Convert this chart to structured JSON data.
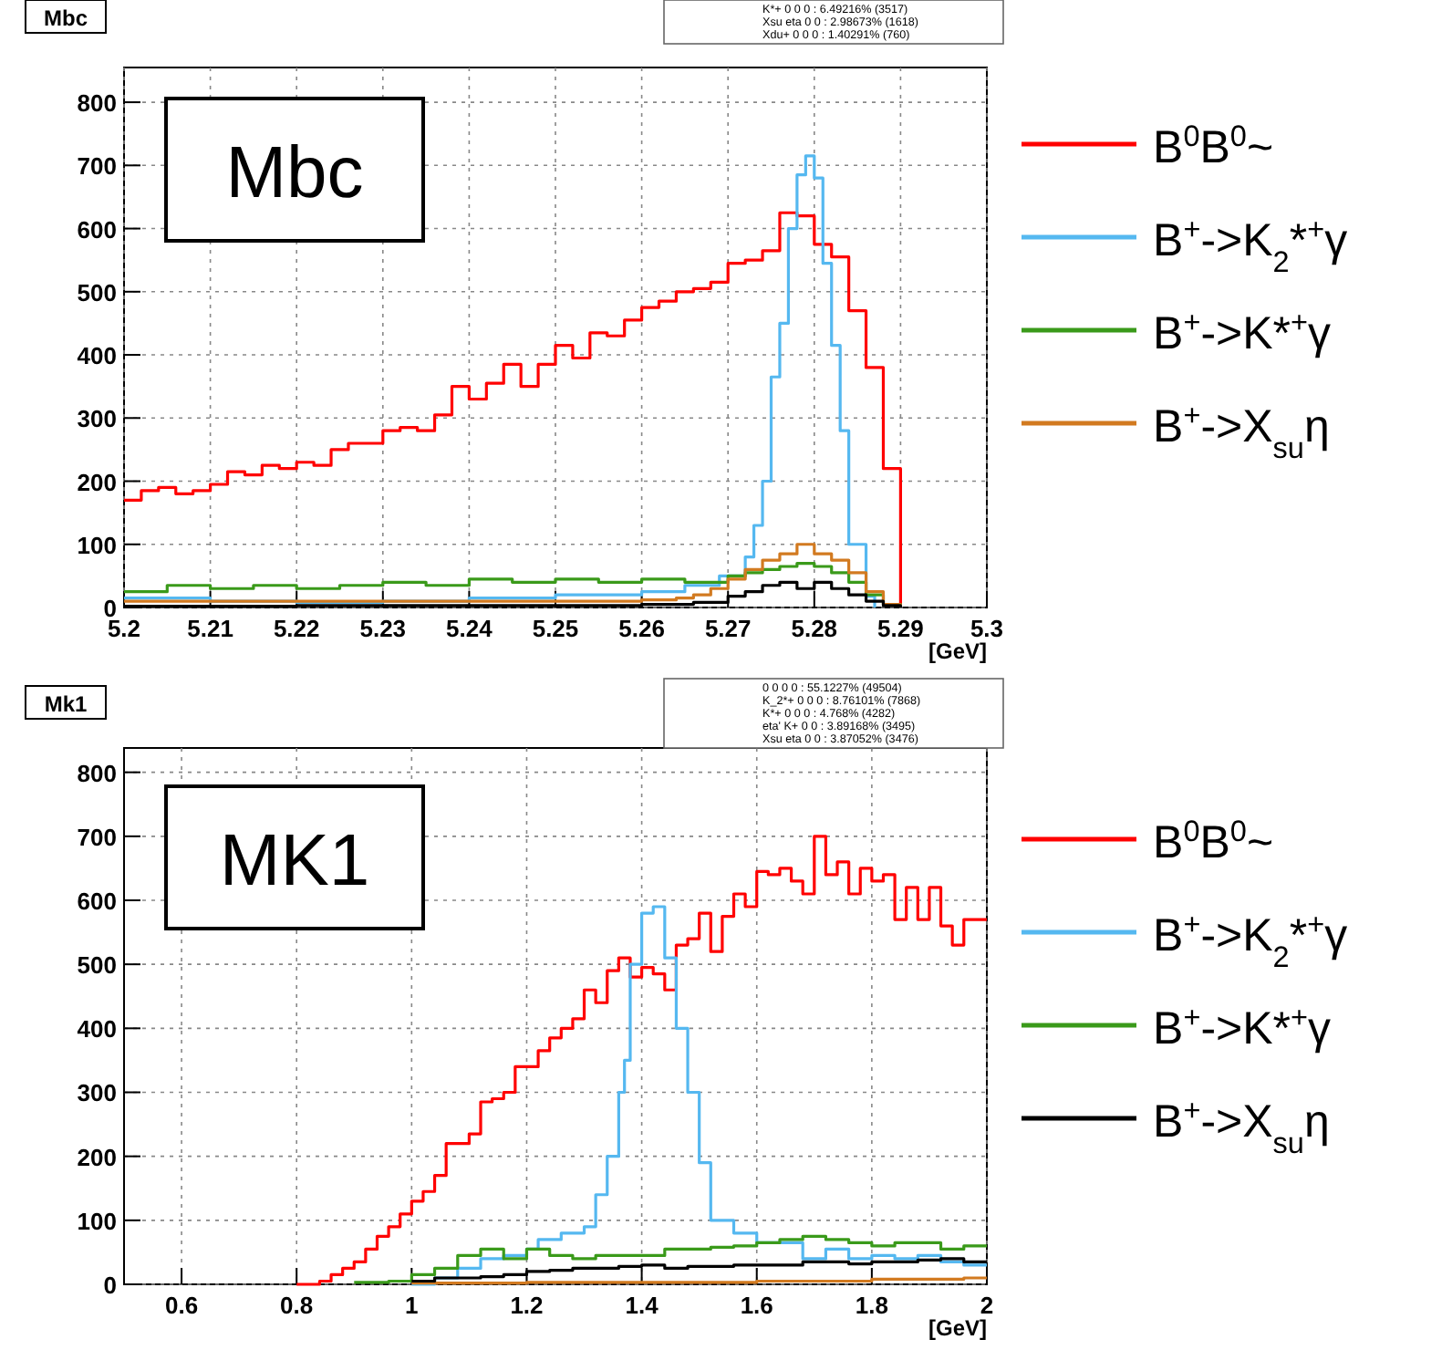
{
  "chart_data": [
    {
      "type": "step",
      "title": "Mbc",
      "xlabel": "[GeV]",
      "xlim": [
        5.2,
        5.3
      ],
      "xticks": [
        5.2,
        5.21,
        5.22,
        5.23,
        5.24,
        5.25,
        5.26,
        5.27,
        5.28,
        5.29,
        5.3
      ],
      "ylim": [
        0,
        855
      ],
      "yticks": [
        0,
        100,
        200,
        300,
        400,
        500,
        600,
        700,
        800
      ],
      "grid": true,
      "legend": "right",
      "annotations": [
        "Mbc",
        "K*+ 0 0 0 : 6.49216% (3517)",
        "Xsu eta 0 0 : 2.98673% (1618)",
        "Xdu+ 0 0 0 : 1.40291% (760)"
      ],
      "series": [
        {
          "name": "B$^{0}$B$^{0}$~",
          "color": "#ff0000",
          "x": [
            5.2,
            5.202,
            5.204,
            5.206,
            5.208,
            5.21,
            5.212,
            5.214,
            5.216,
            5.218,
            5.22,
            5.222,
            5.224,
            5.226,
            5.228,
            5.23,
            5.232,
            5.234,
            5.236,
            5.238,
            5.24,
            5.242,
            5.244,
            5.246,
            5.248,
            5.25,
            5.252,
            5.254,
            5.256,
            5.258,
            5.26,
            5.262,
            5.264,
            5.266,
            5.268,
            5.27,
            5.272,
            5.274,
            5.276,
            5.278,
            5.28,
            5.282,
            5.284,
            5.286,
            5.288,
            5.29
          ],
          "values": [
            170,
            185,
            190,
            180,
            185,
            195,
            215,
            210,
            225,
            220,
            230,
            225,
            250,
            260,
            260,
            280,
            285,
            280,
            305,
            350,
            330,
            355,
            385,
            350,
            385,
            415,
            395,
            435,
            430,
            455,
            475,
            485,
            500,
            505,
            515,
            545,
            550,
            565,
            625,
            620,
            575,
            555,
            470,
            380,
            220,
            0
          ]
        },
        {
          "name": "B$^{+}$->K$_{2}$*$^{+}$γ",
          "color": "#55b8f0",
          "x": [
            5.2,
            5.21,
            5.22,
            5.23,
            5.24,
            5.25,
            5.26,
            5.265,
            5.269,
            5.272,
            5.273,
            5.274,
            5.275,
            5.276,
            5.277,
            5.278,
            5.279,
            5.28,
            5.281,
            5.282,
            5.283,
            5.284,
            5.285,
            5.286,
            5.287
          ],
          "values": [
            15,
            10,
            8,
            10,
            15,
            20,
            25,
            35,
            50,
            80,
            130,
            200,
            365,
            450,
            600,
            685,
            715,
            680,
            545,
            415,
            280,
            100,
            100,
            18,
            0
          ]
        },
        {
          "name": "B$^{+}$->K*$^{+}$γ",
          "color": "#3a9a1a",
          "x": [
            5.2,
            5.205,
            5.21,
            5.215,
            5.22,
            5.225,
            5.23,
            5.235,
            5.24,
            5.245,
            5.25,
            5.255,
            5.26,
            5.265,
            5.27,
            5.272,
            5.274,
            5.276,
            5.278,
            5.28,
            5.282,
            5.284,
            5.286,
            5.288,
            5.29
          ],
          "values": [
            25,
            35,
            30,
            35,
            30,
            35,
            40,
            35,
            45,
            40,
            45,
            40,
            45,
            40,
            50,
            55,
            60,
            65,
            70,
            65,
            55,
            40,
            20,
            5,
            0
          ]
        },
        {
          "name": "B$^{+}$->X$_{su}$η",
          "color": "#d27a20",
          "x": [
            5.2,
            5.22,
            5.24,
            5.26,
            5.264,
            5.266,
            5.268,
            5.27,
            5.272,
            5.274,
            5.276,
            5.278,
            5.28,
            5.282,
            5.284,
            5.286,
            5.288,
            5.29
          ],
          "values": [
            10,
            10,
            10,
            12,
            15,
            20,
            30,
            45,
            60,
            75,
            85,
            100,
            85,
            75,
            55,
            25,
            5,
            0
          ]
        },
        {
          "color": "#000000",
          "x": [
            5.2,
            5.22,
            5.24,
            5.26,
            5.266,
            5.27,
            5.272,
            5.274,
            5.276,
            5.278,
            5.28,
            5.282,
            5.284,
            5.286,
            5.288,
            5.29
          ],
          "values": [
            2,
            3,
            3,
            5,
            8,
            18,
            25,
            35,
            40,
            30,
            40,
            30,
            20,
            10,
            3,
            0
          ]
        }
      ]
    },
    {
      "type": "step",
      "title": "Mk1",
      "xlabel": "[GeV]",
      "xlim": [
        0.5,
        2
      ],
      "xticks": [
        0.6,
        0.8,
        1,
        1.2,
        1.4,
        1.6,
        1.8,
        2
      ],
      "ylim": [
        0,
        838
      ],
      "yticks": [
        0,
        100,
        200,
        300,
        400,
        500,
        600,
        700,
        800
      ],
      "grid": true,
      "legend": "right",
      "annotations": [
        "MK1",
        "0 0 0 0 : 55.1227% (49504)",
        "K_2*+ 0 0 0 : 8.76101% (7868)",
        "K*+ 0 0 0 : 4.768% (4282)",
        "eta' K+ 0 0 : 3.89168% (3495)",
        "Xsu eta 0 0 : 3.87052% (3476)"
      ],
      "series": [
        {
          "name": "B$^{0}$B$^{0}$~",
          "color": "#ff0000",
          "x": [
            0.8,
            0.84,
            0.86,
            0.88,
            0.9,
            0.92,
            0.94,
            0.96,
            0.98,
            1,
            1.02,
            1.04,
            1.06,
            1.08,
            1.1,
            1.12,
            1.14,
            1.16,
            1.18,
            1.2,
            1.22,
            1.24,
            1.26,
            1.28,
            1.3,
            1.32,
            1.34,
            1.36,
            1.38,
            1.4,
            1.42,
            1.44,
            1.46,
            1.48,
            1.5,
            1.52,
            1.54,
            1.56,
            1.58,
            1.6,
            1.62,
            1.64,
            1.66,
            1.68,
            1.7,
            1.72,
            1.74,
            1.76,
            1.78,
            1.8,
            1.82,
            1.84,
            1.86,
            1.88,
            1.9,
            1.92,
            1.94,
            1.96,
            1.98,
            2
          ],
          "values": [
            0,
            5,
            15,
            25,
            35,
            55,
            75,
            90,
            110,
            130,
            145,
            170,
            220,
            220,
            235,
            285,
            290,
            300,
            340,
            340,
            365,
            385,
            400,
            415,
            460,
            440,
            490,
            510,
            480,
            495,
            485,
            460,
            530,
            540,
            580,
            520,
            575,
            610,
            590,
            645,
            640,
            650,
            630,
            610,
            700,
            640,
            660,
            610,
            650,
            630,
            640,
            570,
            620,
            570,
            620,
            560,
            530,
            570,
            570,
            570
          ]
        },
        {
          "name": "B$^{+}$->K$_{2}$*$^{+}$γ",
          "color": "#55b8f0",
          "x": [
            1,
            1.04,
            1.08,
            1.12,
            1.16,
            1.2,
            1.22,
            1.26,
            1.3,
            1.32,
            1.34,
            1.36,
            1.37,
            1.38,
            1.4,
            1.42,
            1.44,
            1.46,
            1.48,
            1.5,
            1.52,
            1.56,
            1.6,
            1.64,
            1.68,
            1.72,
            1.76,
            1.8,
            1.84,
            1.88,
            1.92,
            1.96,
            2
          ],
          "values": [
            0,
            10,
            25,
            40,
            45,
            55,
            70,
            80,
            90,
            140,
            200,
            300,
            350,
            500,
            580,
            590,
            510,
            400,
            300,
            190,
            100,
            80,
            65,
            65,
            40,
            55,
            40,
            45,
            40,
            45,
            35,
            30,
            30
          ]
        },
        {
          "name": "B$^{+}$->K*$^{+}$γ",
          "color": "#3a9a1a",
          "x": [
            0.9,
            0.96,
            1,
            1.04,
            1.08,
            1.12,
            1.16,
            1.2,
            1.24,
            1.28,
            1.32,
            1.36,
            1.4,
            1.44,
            1.48,
            1.52,
            1.56,
            1.6,
            1.64,
            1.68,
            1.72,
            1.76,
            1.8,
            1.84,
            1.88,
            1.92,
            1.96,
            2
          ],
          "values": [
            3,
            5,
            15,
            25,
            45,
            55,
            40,
            55,
            45,
            40,
            45,
            45,
            45,
            55,
            55,
            58,
            60,
            65,
            70,
            75,
            70,
            65,
            60,
            65,
            65,
            55,
            60,
            60
          ]
        },
        {
          "color": "#d27a20",
          "x": [
            1,
            1.2,
            1.4,
            1.6,
            1.8,
            1.96,
            2
          ],
          "values": [
            2,
            3,
            3,
            5,
            8,
            10,
            10
          ]
        },
        {
          "name": "B$^{+}$->X$_{su}$η",
          "color": "#000000",
          "x": [
            1,
            1.04,
            1.08,
            1.12,
            1.16,
            1.2,
            1.24,
            1.28,
            1.32,
            1.36,
            1.4,
            1.44,
            1.48,
            1.52,
            1.56,
            1.6,
            1.64,
            1.68,
            1.72,
            1.76,
            1.8,
            1.84,
            1.88,
            1.92,
            1.96,
            2
          ],
          "values": [
            5,
            10,
            10,
            12,
            15,
            20,
            22,
            25,
            25,
            28,
            30,
            25,
            28,
            28,
            30,
            30,
            30,
            35,
            35,
            32,
            35,
            35,
            38,
            40,
            35,
            35
          ]
        }
      ]
    }
  ]
}
